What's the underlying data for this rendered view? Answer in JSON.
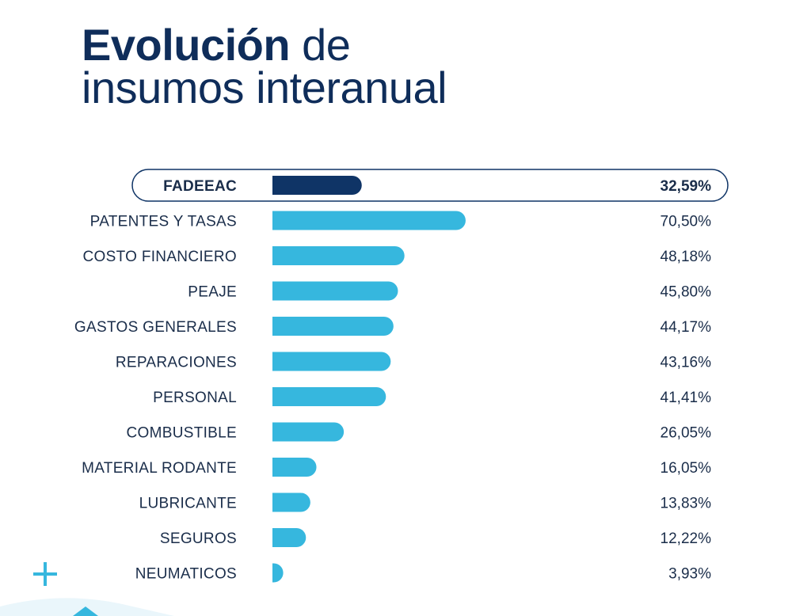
{
  "title": {
    "bold": "Evolución",
    "rest1": "de",
    "line2": "insumos interanual"
  },
  "colors": {
    "title": "#0f2d5a",
    "highlight_bar": "#0f3466",
    "bar": "#36b7de",
    "text": "#1a2d4a",
    "accent": "#36b7de"
  },
  "chart_data": {
    "type": "bar",
    "orientation": "horizontal",
    "title": "Evolución de insumos interanual",
    "categories": [
      "FADEEAC",
      "PATENTES Y TASAS",
      "COSTO FINANCIERO",
      "PEAJE",
      "GASTOS GENERALES",
      "REPARACIONES",
      "PERSONAL",
      "COMBUSTIBLE",
      "MATERIAL RODANTE",
      "LUBRICANTE",
      "SEGUROS",
      "NEUMATICOS"
    ],
    "values": [
      32.59,
      70.5,
      48.18,
      45.8,
      44.17,
      43.16,
      41.41,
      26.05,
      16.05,
      13.83,
      12.22,
      3.93
    ],
    "value_labels": [
      "32,59%",
      "70,50%",
      "48,18%",
      "45,80%",
      "44,17%",
      "43,16%",
      "41,41%",
      "26,05%",
      "16,05%",
      "13,83%",
      "12,22%",
      "3,93%"
    ],
    "highlight": "FADEEAC",
    "xlim": [
      0,
      100
    ],
    "grid": false,
    "legend": "none"
  }
}
